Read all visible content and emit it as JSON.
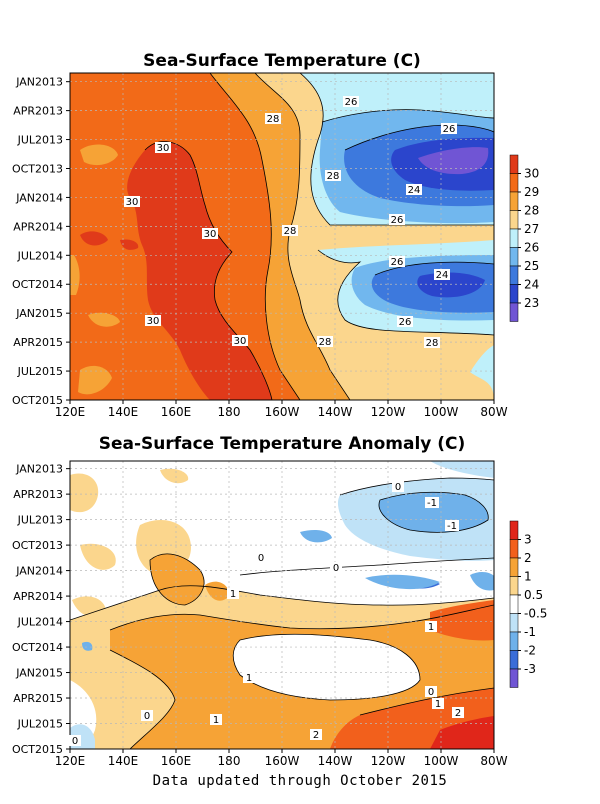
{
  "footer": "Data updated through October 2015",
  "chart_data": [
    {
      "type": "heatmap",
      "title": "Sea-Surface Temperature (C)",
      "x_tick_labels": [
        "120E",
        "140E",
        "160E",
        "180",
        "160W",
        "140W",
        "120W",
        "100W",
        "80W"
      ],
      "x_range_deg_east": [
        120,
        280
      ],
      "y_tick_labels": [
        "JAN2013",
        "APR2013",
        "JUL2013",
        "OCT2013",
        "JAN2014",
        "APR2014",
        "JUL2014",
        "OCT2014",
        "JAN2015",
        "APR2015",
        "JUL2015",
        "OCT2015"
      ],
      "y_range": [
        "2012-11",
        "2015-10"
      ],
      "contour_labels": [
        "30",
        "28",
        "26",
        "24"
      ],
      "legend": {
        "position": "right",
        "labels": [
          "30",
          "29",
          "28",
          "27",
          "26",
          "25",
          "24",
          "23"
        ],
        "colors": [
          "#e03a1a",
          "#f26a18",
          "#f6a336",
          "#fbd68d",
          "#bff0fa",
          "#71b7ee",
          "#3d79dd",
          "#2b45cc",
          "#7055d4"
        ]
      },
      "palette": {
        "c30": "#e03a1a",
        "c29": "#f26a18",
        "c28": "#f6a336",
        "c27": "#fbd68d",
        "c26": "#bff0fa",
        "c25": "#71b7ee",
        "c24": "#3d79dd",
        "c23": "#2b45cc",
        "c22": "#7055d4"
      },
      "grid": true
    },
    {
      "type": "heatmap",
      "title": "Sea-Surface Temperature Anomaly (C)",
      "x_tick_labels": [
        "120E",
        "140E",
        "160E",
        "180",
        "160W",
        "140W",
        "120W",
        "100W",
        "80W"
      ],
      "x_range_deg_east": [
        120,
        280
      ],
      "y_tick_labels": [
        "JAN2013",
        "APR2013",
        "JUL2013",
        "OCT2013",
        "JAN2014",
        "APR2014",
        "JUL2014",
        "OCT2014",
        "JAN2015",
        "APR2015",
        "JUL2015",
        "OCT2015"
      ],
      "y_range": [
        "2012-11",
        "2015-10"
      ],
      "contour_labels": [
        "0",
        "-1",
        "1",
        "2"
      ],
      "legend": {
        "position": "right",
        "labels": [
          "3",
          "2",
          "1",
          "0.5",
          "-0.5",
          "-1",
          "-2",
          "-3"
        ],
        "colors": [
          "#e0261a",
          "#f2601c",
          "#f6a336",
          "#fbd68d",
          "#ffffff",
          "#bfe2f7",
          "#6fb1ea",
          "#3a6dd8",
          "#7055d4"
        ]
      },
      "palette": {
        "a3": "#e0261a",
        "a2": "#f2601c",
        "a1": "#f6a336",
        "a05": "#fbd68d",
        "a0": "#ffffff",
        "n05": "#bfe2f7",
        "n1": "#6fb1ea",
        "n2": "#3a6dd8",
        "n3": "#7055d4"
      },
      "grid": true
    }
  ]
}
